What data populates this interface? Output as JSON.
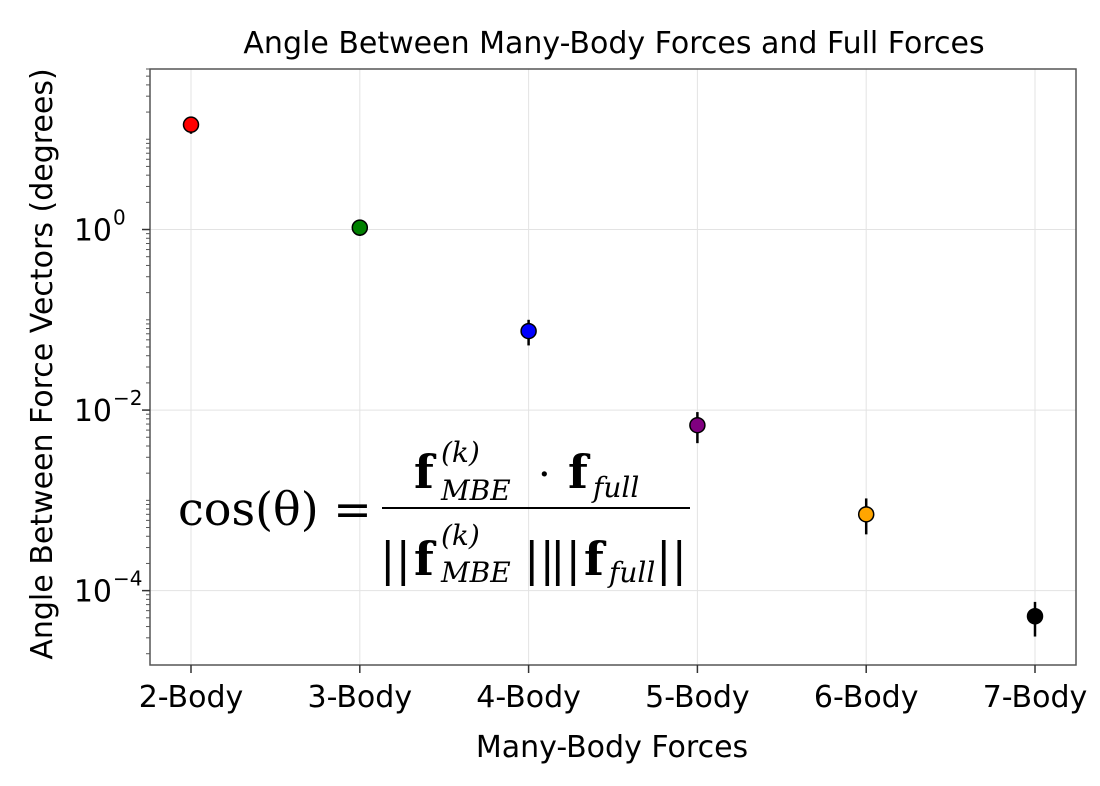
{
  "chart_data": {
    "type": "scatter",
    "title": "Angle Between Many-Body Forces and Full Forces",
    "xlabel": "Many-Body Forces",
    "ylabel": "Angle Between Force Vectors (degrees)",
    "categories": [
      "2-Body",
      "3-Body",
      "4-Body",
      "5-Body",
      "6-Body",
      "7-Body"
    ],
    "values": [
      14.5,
      1.05,
      0.075,
      0.0068,
      0.0007,
      5.2e-05
    ],
    "error_low": [
      11.5,
      0.85,
      0.052,
      0.0043,
      0.00042,
      3.1e-05
    ],
    "error_high": [
      16.5,
      1.15,
      0.1,
      0.0095,
      0.00105,
      7.5e-05
    ],
    "colors": [
      "#ff0000",
      "#008000",
      "#0000ff",
      "#800080",
      "#ffa500",
      "#000000"
    ],
    "yscale": "log",
    "ylim": [
      1.5e-05,
      60
    ],
    "yticks": [
      {
        "base": "10",
        "exp": "0",
        "value": 1
      },
      {
        "base": "10",
        "exp": "−2",
        "value": 0.01
      },
      {
        "base": "10",
        "exp": "−4",
        "value": 0.0001
      }
    ],
    "grid": true
  },
  "formula": {
    "lhs": "cos(θ) =",
    "f": "f",
    "sup_k": "(k)",
    "sub_mbe": "MBE",
    "dot": "·",
    "sub_full": "full",
    "bars": "||"
  }
}
